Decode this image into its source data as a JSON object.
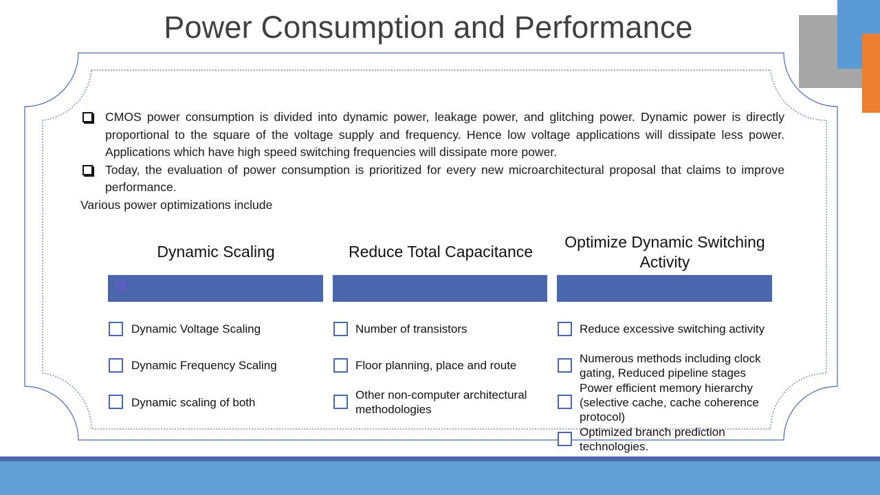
{
  "slide": {
    "title": "Power Consumption and Performance",
    "bullets": [
      "CMOS power consumption is divided into dynamic power, leakage power, and glitching power.   Dynamic power is directly proportional to the square of the voltage supply and frequency. Hence low voltage applications will dissipate less power. Applications which have high speed switching frequencies will dissipate more power.",
      "Today, the evaluation of power consumption is prioritized for every new microarchitectural proposal that claims to improve performance."
    ],
    "intro": "Various power optimizations include"
  },
  "columns": [
    {
      "heading": "Dynamic Scaling",
      "items": [
        "Dynamic Voltage Scaling",
        "Dynamic Frequency Scaling",
        "Dynamic scaling of both"
      ]
    },
    {
      "heading": "Reduce Total Capacitance",
      "items": [
        "Number of transistors",
        "Floor planning, place and route",
        "Other non-computer architectural methodologies"
      ]
    },
    {
      "heading": "Optimize Dynamic Switching Activity",
      "items": [
        "Reduce excessive switching activity",
        "Numerous methods including clock gating, Reduced pipeline stages",
        "Power efficient memory hierarchy (selective cache, cache coherence protocol)",
        "Optimized branch prediction technologies."
      ]
    }
  ],
  "colors": {
    "bar": "#4a66ad",
    "frame": "#4a69ad",
    "accent_blue": "#5b9bd5",
    "accent_orange": "#ed7d31",
    "accent_gray": "#a6a6a6"
  }
}
